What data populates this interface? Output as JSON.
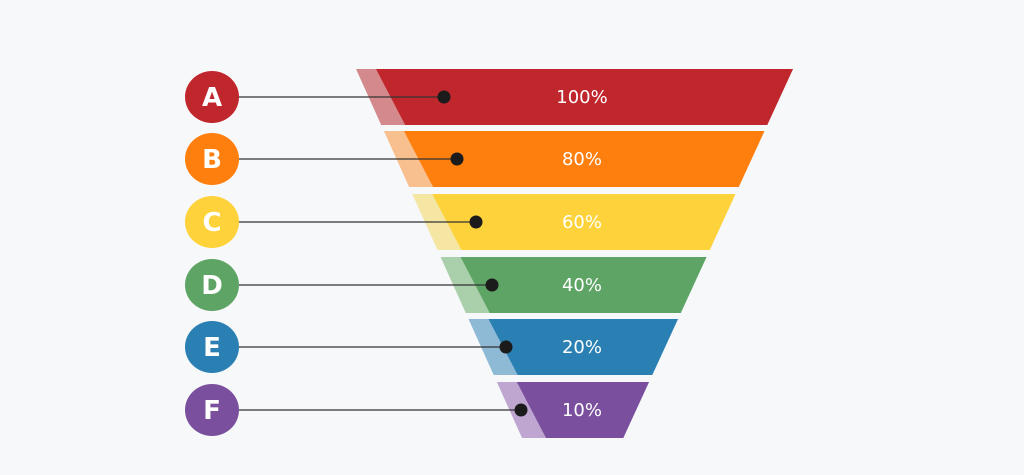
{
  "chart_data": {
    "type": "funnel",
    "stages": [
      {
        "letter": "A",
        "value": 100,
        "label": "100%",
        "color": "#c0272d",
        "shade": "#d48a8d"
      },
      {
        "letter": "B",
        "value": 80,
        "label": "80%",
        "color": "#ff7f0e",
        "shade": "#f9c08f"
      },
      {
        "letter": "C",
        "value": 60,
        "label": "60%",
        "color": "#fdd23a",
        "shade": "#f6e6a4"
      },
      {
        "letter": "D",
        "value": 40,
        "label": "40%",
        "color": "#5ea464",
        "shade": "#a9cfab"
      },
      {
        "letter": "E",
        "value": 20,
        "label": "20%",
        "color": "#2a7fb3",
        "shade": "#8ebad6"
      },
      {
        "letter": "F",
        "value": 10,
        "label": "10%",
        "color": "#7a4f9e",
        "shade": "#bea6d1"
      }
    ]
  },
  "colors": {
    "background": "#f7f8fa",
    "connector": "#333333",
    "dot": "#1b1b1b",
    "text": "#ffffff"
  }
}
